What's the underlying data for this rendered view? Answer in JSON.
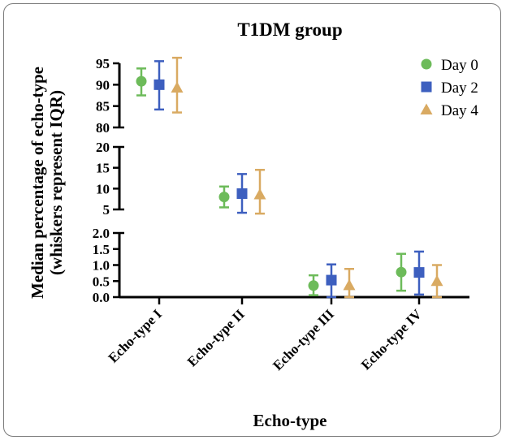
{
  "chart_data": {
    "type": "scatter",
    "title": "T1DM group",
    "xlabel": "Echo-type",
    "ylabel": "Median percentage of echo-type (whiskers represent IQR)",
    "ylabel_lines": [
      "Median percentage of echo-type",
      "(whiskers represent IQR)"
    ],
    "categories": [
      "Echo-type I",
      "Echo-type II",
      "Echo-type III",
      "Echo-type IV"
    ],
    "y_axis_segments": [
      {
        "ylim": [
          80,
          95
        ],
        "ticks": [
          80,
          85,
          90,
          95
        ],
        "tick_labels": [
          "80",
          "85",
          "90",
          "95"
        ]
      },
      {
        "ylim": [
          5,
          20
        ],
        "ticks": [
          5,
          10,
          15,
          20
        ],
        "tick_labels": [
          "5",
          "10",
          "15",
          "20"
        ]
      },
      {
        "ylim": [
          0,
          2
        ],
        "ticks": [
          0,
          0.5,
          1,
          1.5,
          2
        ],
        "tick_labels": [
          "0.0",
          "0.5",
          "1.0",
          "1.5",
          "2.0"
        ]
      }
    ],
    "series": [
      {
        "name": "Day 0",
        "marker": "circle",
        "color": "#6dbb5a",
        "median": [
          90.8,
          8.0,
          0.36,
          0.78
        ],
        "q1": [
          87.5,
          5.5,
          0.06,
          0.2
        ],
        "q3": [
          93.8,
          10.5,
          0.68,
          1.35
        ]
      },
      {
        "name": "Day 2",
        "marker": "square",
        "color": "#3d5fbf",
        "median": [
          90.0,
          8.8,
          0.53,
          0.77
        ],
        "q1": [
          84.2,
          4.2,
          0.0,
          0.08
        ],
        "q3": [
          95.5,
          13.5,
          1.02,
          1.42
        ]
      },
      {
        "name": "Day 4",
        "marker": "triangle",
        "color": "#d9aa62",
        "median": [
          89.3,
          8.6,
          0.37,
          0.5
        ],
        "q1": [
          83.5,
          4.0,
          0.0,
          0.0
        ],
        "q3": [
          96.3,
          14.5,
          0.88,
          1.0
        ]
      }
    ],
    "legend_position": "top-right",
    "grid": false
  }
}
